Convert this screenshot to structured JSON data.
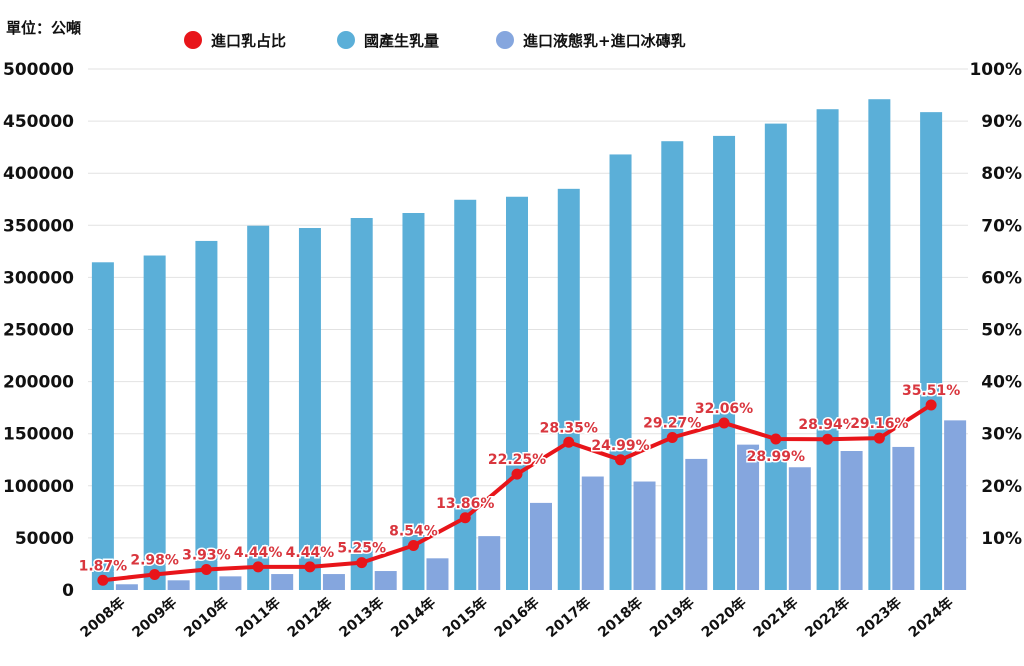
{
  "chart_data": {
    "type": "bar",
    "title": "",
    "unit_label": "單位：公噸",
    "xlabel": "",
    "ylabel": "",
    "categories": [
      "2008年",
      "2009年",
      "2010年",
      "2011年",
      "2012年",
      "2013年",
      "2014年",
      "2015年",
      "2016年",
      "2017年",
      "2018年",
      "2019年",
      "2020年",
      "2021年",
      "2022年",
      "2023年",
      "2024年"
    ],
    "ylim": [
      0,
      500000
    ],
    "y_ticks": [
      "0",
      "50000",
      "100000",
      "150000",
      "200000",
      "250000",
      "300000",
      "350000",
      "400000",
      "450000",
      "500000"
    ],
    "y2lim": [
      0,
      100
    ],
    "y2_ticks": [
      "10%",
      "20%",
      "30%",
      "40%",
      "50%",
      "60%",
      "70%",
      "80%",
      "90%",
      "100%"
    ],
    "grid": true,
    "legend_position": "top",
    "series": [
      {
        "name": "進口乳占比",
        "type": "line",
        "axis": "right",
        "color": "#e8151a",
        "values": [
          1.87,
          2.98,
          3.93,
          4.44,
          4.44,
          5.25,
          8.54,
          13.86,
          22.25,
          28.35,
          24.99,
          29.27,
          32.06,
          28.99,
          28.94,
          29.16,
          35.51
        ],
        "labels": [
          "1.87%",
          "2.98%",
          "3.93%",
          "4.44%",
          "4.44%",
          "5.25%",
          "8.54%",
          "13.86%",
          "22.25%",
          "28.35%",
          "24.99%",
          "29.27%",
          "32.06%",
          "28.99%",
          "28.94%",
          "29.16%",
          "35.51%"
        ]
      },
      {
        "name": "國產生乳量",
        "type": "bar",
        "axis": "left",
        "color": "#5bafd8",
        "values": [
          314500,
          321000,
          335000,
          349600,
          347400,
          357000,
          361800,
          374500,
          377400,
          385000,
          418000,
          430700,
          435800,
          447600,
          461400,
          471000,
          458600
        ]
      },
      {
        "name": "進口液態乳+進口冰磚乳",
        "type": "bar",
        "axis": "left",
        "color": "#85a6de",
        "values": [
          5500,
          9300,
          13100,
          15300,
          15300,
          18200,
          30400,
          51700,
          83600,
          108900,
          104100,
          125800,
          139500,
          117800,
          133400,
          137300,
          162800
        ]
      }
    ]
  }
}
